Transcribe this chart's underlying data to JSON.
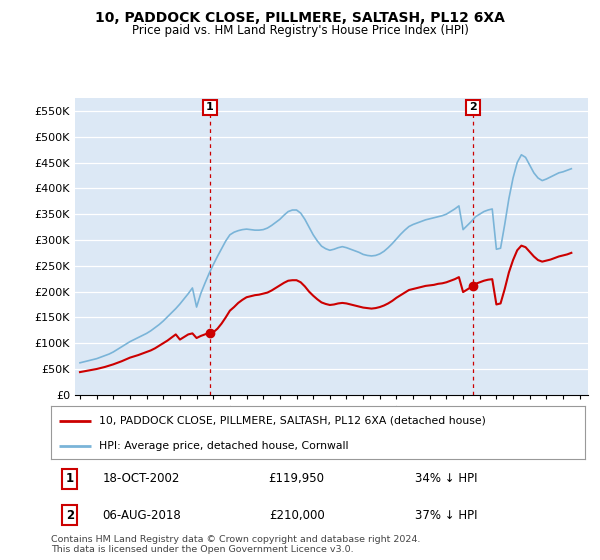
{
  "title": "10, PADDOCK CLOSE, PILLMERE, SALTASH, PL12 6XA",
  "subtitle": "Price paid vs. HM Land Registry's House Price Index (HPI)",
  "ylim": [
    0,
    575000
  ],
  "yticks": [
    0,
    50000,
    100000,
    150000,
    200000,
    250000,
    300000,
    350000,
    400000,
    450000,
    500000,
    550000
  ],
  "ytick_labels": [
    "£0",
    "£50K",
    "£100K",
    "£150K",
    "£200K",
    "£250K",
    "£300K",
    "£350K",
    "£400K",
    "£450K",
    "£500K",
    "£550K"
  ],
  "hpi_color": "#7ab4d8",
  "price_color": "#cc0000",
  "marker_color": "#cc0000",
  "background_color": "#dce8f5",
  "grid_color": "#ffffff",
  "legend_label_price": "10, PADDOCK CLOSE, PILLMERE, SALTASH, PL12 6XA (detached house)",
  "legend_label_hpi": "HPI: Average price, detached house, Cornwall",
  "transaction1_label": "1",
  "transaction1_date": "18-OCT-2002",
  "transaction1_price": "£119,950",
  "transaction1_hpi": "34% ↓ HPI",
  "transaction2_label": "2",
  "transaction2_date": "06-AUG-2018",
  "transaction2_price": "£210,000",
  "transaction2_hpi": "37% ↓ HPI",
  "footer": "Contains HM Land Registry data © Crown copyright and database right 2024.\nThis data is licensed under the Open Government Licence v3.0.",
  "transaction1_x": 2002.8,
  "transaction1_y": 119950,
  "transaction2_x": 2018.6,
  "transaction2_y": 210000,
  "xlim": [
    1994.7,
    2025.5
  ],
  "xticks": [
    1995,
    1996,
    1997,
    1998,
    1999,
    2000,
    2001,
    2002,
    2003,
    2004,
    2005,
    2006,
    2007,
    2008,
    2009,
    2010,
    2011,
    2012,
    2013,
    2014,
    2015,
    2016,
    2017,
    2018,
    2019,
    2020,
    2021,
    2022,
    2023,
    2024,
    2025
  ],
  "hpi_x": [
    1995.0,
    1995.25,
    1995.5,
    1995.75,
    1996.0,
    1996.25,
    1996.5,
    1996.75,
    1997.0,
    1997.25,
    1997.5,
    1997.75,
    1998.0,
    1998.25,
    1998.5,
    1998.75,
    1999.0,
    1999.25,
    1999.5,
    1999.75,
    2000.0,
    2000.25,
    2000.5,
    2000.75,
    2001.0,
    2001.25,
    2001.5,
    2001.75,
    2002.0,
    2002.25,
    2002.5,
    2002.75,
    2003.0,
    2003.25,
    2003.5,
    2003.75,
    2004.0,
    2004.25,
    2004.5,
    2004.75,
    2005.0,
    2005.25,
    2005.5,
    2005.75,
    2006.0,
    2006.25,
    2006.5,
    2006.75,
    2007.0,
    2007.25,
    2007.5,
    2007.75,
    2008.0,
    2008.25,
    2008.5,
    2008.75,
    2009.0,
    2009.25,
    2009.5,
    2009.75,
    2010.0,
    2010.25,
    2010.5,
    2010.75,
    2011.0,
    2011.25,
    2011.5,
    2011.75,
    2012.0,
    2012.25,
    2012.5,
    2012.75,
    2013.0,
    2013.25,
    2013.5,
    2013.75,
    2014.0,
    2014.25,
    2014.5,
    2014.75,
    2015.0,
    2015.25,
    2015.5,
    2015.75,
    2016.0,
    2016.25,
    2016.5,
    2016.75,
    2017.0,
    2017.25,
    2017.5,
    2017.75,
    2018.0,
    2018.25,
    2018.5,
    2018.75,
    2019.0,
    2019.25,
    2019.5,
    2019.75,
    2020.0,
    2020.25,
    2020.5,
    2020.75,
    2021.0,
    2021.25,
    2021.5,
    2021.75,
    2022.0,
    2022.25,
    2022.5,
    2022.75,
    2023.0,
    2023.25,
    2023.5,
    2023.75,
    2024.0,
    2024.25,
    2024.5
  ],
  "hpi_y": [
    62000,
    64000,
    66000,
    68000,
    70000,
    73000,
    76000,
    79000,
    83000,
    88000,
    93000,
    98000,
    103000,
    107000,
    111000,
    115000,
    119000,
    124000,
    130000,
    136000,
    143000,
    151000,
    159000,
    167000,
    176000,
    186000,
    196000,
    207000,
    170000,
    196000,
    216000,
    235000,
    252000,
    268000,
    283000,
    298000,
    310000,
    315000,
    318000,
    320000,
    321000,
    320000,
    319000,
    319000,
    320000,
    323000,
    328000,
    334000,
    340000,
    348000,
    355000,
    358000,
    358000,
    352000,
    340000,
    325000,
    310000,
    298000,
    288000,
    283000,
    280000,
    282000,
    285000,
    287000,
    285000,
    282000,
    279000,
    276000,
    272000,
    270000,
    269000,
    270000,
    273000,
    278000,
    285000,
    293000,
    302000,
    311000,
    319000,
    326000,
    330000,
    333000,
    336000,
    339000,
    341000,
    343000,
    345000,
    347000,
    350000,
    355000,
    360000,
    366000,
    320000,
    328000,
    336000,
    345000,
    350000,
    355000,
    358000,
    360000,
    282000,
    284000,
    330000,
    380000,
    420000,
    450000,
    465000,
    460000,
    445000,
    430000,
    420000,
    415000,
    418000,
    422000,
    426000,
    430000,
    432000,
    435000,
    438000
  ],
  "price_x": [
    1995.0,
    1995.25,
    1995.5,
    1995.75,
    1996.0,
    1996.25,
    1996.5,
    1996.75,
    1997.0,
    1997.25,
    1997.5,
    1997.75,
    1998.0,
    1998.25,
    1998.5,
    1998.75,
    1999.0,
    1999.25,
    1999.5,
    1999.75,
    2000.0,
    2000.25,
    2000.5,
    2000.75,
    2001.0,
    2001.25,
    2001.5,
    2001.75,
    2002.0,
    2002.25,
    2002.5,
    2002.75,
    2003.0,
    2003.25,
    2003.5,
    2003.75,
    2004.0,
    2004.25,
    2004.5,
    2004.75,
    2005.0,
    2005.25,
    2005.5,
    2005.75,
    2006.0,
    2006.25,
    2006.5,
    2006.75,
    2007.0,
    2007.25,
    2007.5,
    2007.75,
    2008.0,
    2008.25,
    2008.5,
    2008.75,
    2009.0,
    2009.25,
    2009.5,
    2009.75,
    2010.0,
    2010.25,
    2010.5,
    2010.75,
    2011.0,
    2011.25,
    2011.5,
    2011.75,
    2012.0,
    2012.25,
    2012.5,
    2012.75,
    2013.0,
    2013.25,
    2013.5,
    2013.75,
    2014.0,
    2014.25,
    2014.5,
    2014.75,
    2015.0,
    2015.25,
    2015.5,
    2015.75,
    2016.0,
    2016.25,
    2016.5,
    2016.75,
    2017.0,
    2017.25,
    2017.5,
    2017.75,
    2018.0,
    2018.25,
    2018.5,
    2018.75,
    2019.0,
    2019.25,
    2019.5,
    2019.75,
    2020.0,
    2020.25,
    2020.5,
    2020.75,
    2021.0,
    2021.25,
    2021.5,
    2021.75,
    2022.0,
    2022.25,
    2022.5,
    2022.75,
    2023.0,
    2023.25,
    2023.5,
    2023.75,
    2024.0,
    2024.25,
    2024.5
  ],
  "price_y": [
    44000,
    45500,
    47000,
    48500,
    50000,
    52000,
    54000,
    56500,
    59000,
    62000,
    65000,
    68500,
    72000,
    74500,
    77000,
    80000,
    83000,
    86000,
    90000,
    95000,
    100000,
    105000,
    111000,
    117000,
    107000,
    112000,
    117000,
    119000,
    110000,
    114000,
    117000,
    119950,
    121000,
    128000,
    138000,
    150000,
    163000,
    170000,
    178000,
    184000,
    189000,
    191000,
    193000,
    194000,
    196000,
    198000,
    202000,
    207000,
    212000,
    217000,
    221000,
    222000,
    222000,
    218000,
    210000,
    200000,
    192000,
    185000,
    179000,
    176000,
    174000,
    175000,
    177000,
    178000,
    177000,
    175000,
    173000,
    171000,
    169000,
    168000,
    167000,
    168000,
    170000,
    173000,
    177000,
    182000,
    188000,
    193000,
    198000,
    203000,
    205000,
    207000,
    209000,
    211000,
    212000,
    213000,
    215000,
    216000,
    218000,
    221000,
    224000,
    228000,
    199000,
    204000,
    209000,
    215000,
    218000,
    221000,
    223000,
    224000,
    175000,
    177000,
    205000,
    237000,
    261000,
    280000,
    289000,
    286000,
    277000,
    268000,
    261000,
    258000,
    260000,
    262000,
    265000,
    268000,
    270000,
    272000,
    275000
  ]
}
